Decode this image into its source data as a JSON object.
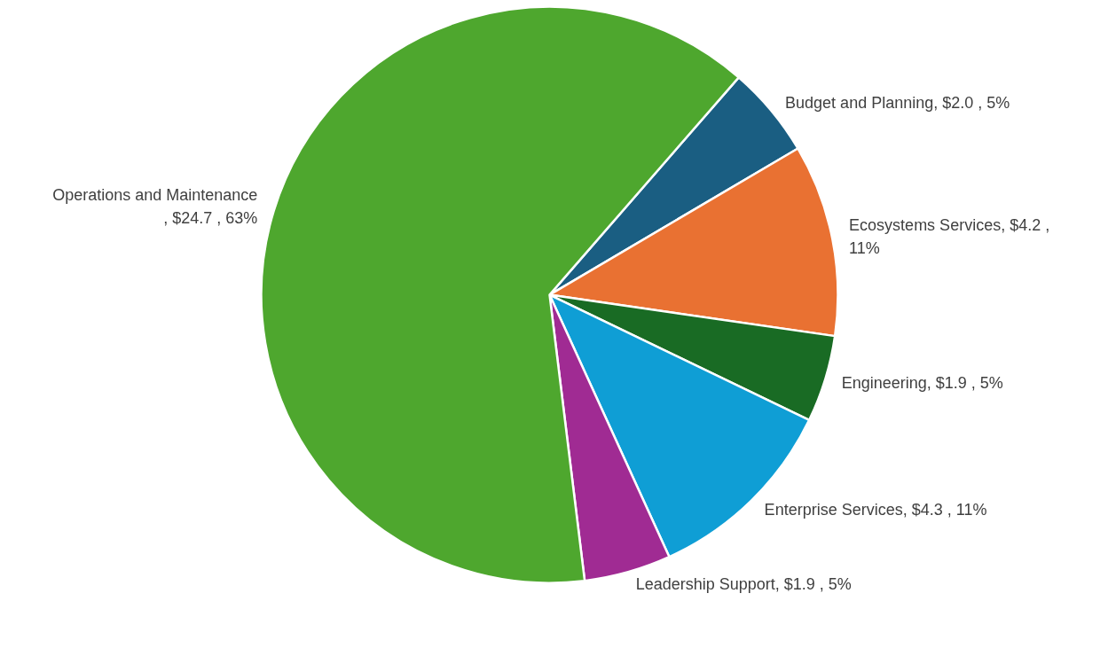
{
  "chart_data": {
    "type": "pie",
    "categories": [
      "Budget and Planning",
      "Ecosystems Services",
      "Engineering",
      "Enterprise Services",
      "Leadership Support",
      "Operations and Maintenance"
    ],
    "values": [
      2.0,
      4.2,
      1.9,
      4.3,
      1.9,
      24.7
    ],
    "value_labels": [
      ", $2.0 , 5%",
      ", $4.2 , 11%",
      ", $1.9 , 5%",
      ", $4.3 , 11%",
      ", $1.9 , 5%",
      ", $24.7 , 63%"
    ],
    "colors": [
      "#1a5e82",
      "#e97132",
      "#196b24",
      "#0f9ed5",
      "#a02b93",
      "#4ea72e"
    ],
    "legend": false
  }
}
